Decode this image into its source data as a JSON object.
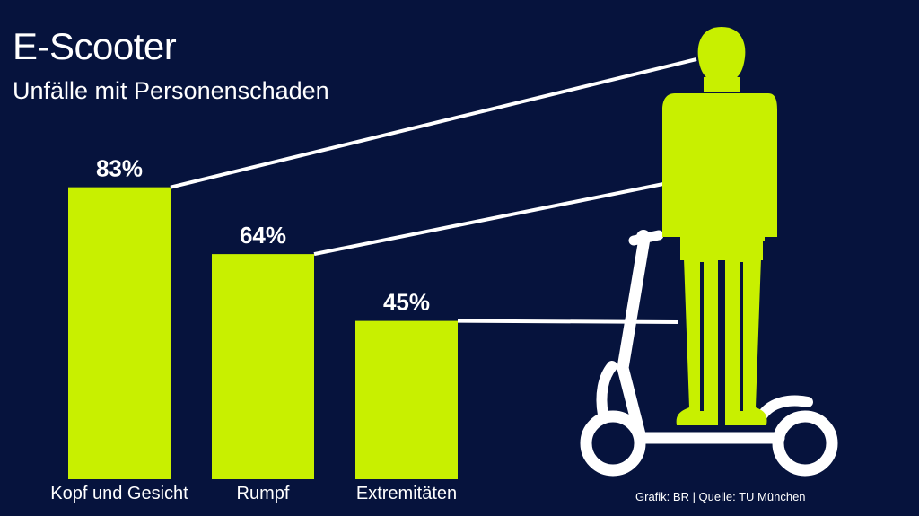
{
  "header": {
    "title": "E-Scooter",
    "subtitle": "Unfälle mit Personenschaden"
  },
  "footer": {
    "source": "Grafik: BR | Quelle: TU München"
  },
  "colors": {
    "background": "#06133d",
    "bar": "#c8f000",
    "figure": "#c8f000",
    "lines": "#ffffff",
    "scooter": "#ffffff"
  },
  "illustration": {
    "figure": "person-standing-icon",
    "vehicle": "e-scooter-icon"
  },
  "chart_data": {
    "type": "bar",
    "categories": [
      "Kopf und Gesicht",
      "Rumpf",
      "Extremitäten"
    ],
    "values": [
      83,
      64,
      45
    ],
    "value_labels": [
      "83%",
      "64%",
      "45%"
    ],
    "ylim": [
      0,
      100
    ],
    "grid": false,
    "legend": "none"
  }
}
